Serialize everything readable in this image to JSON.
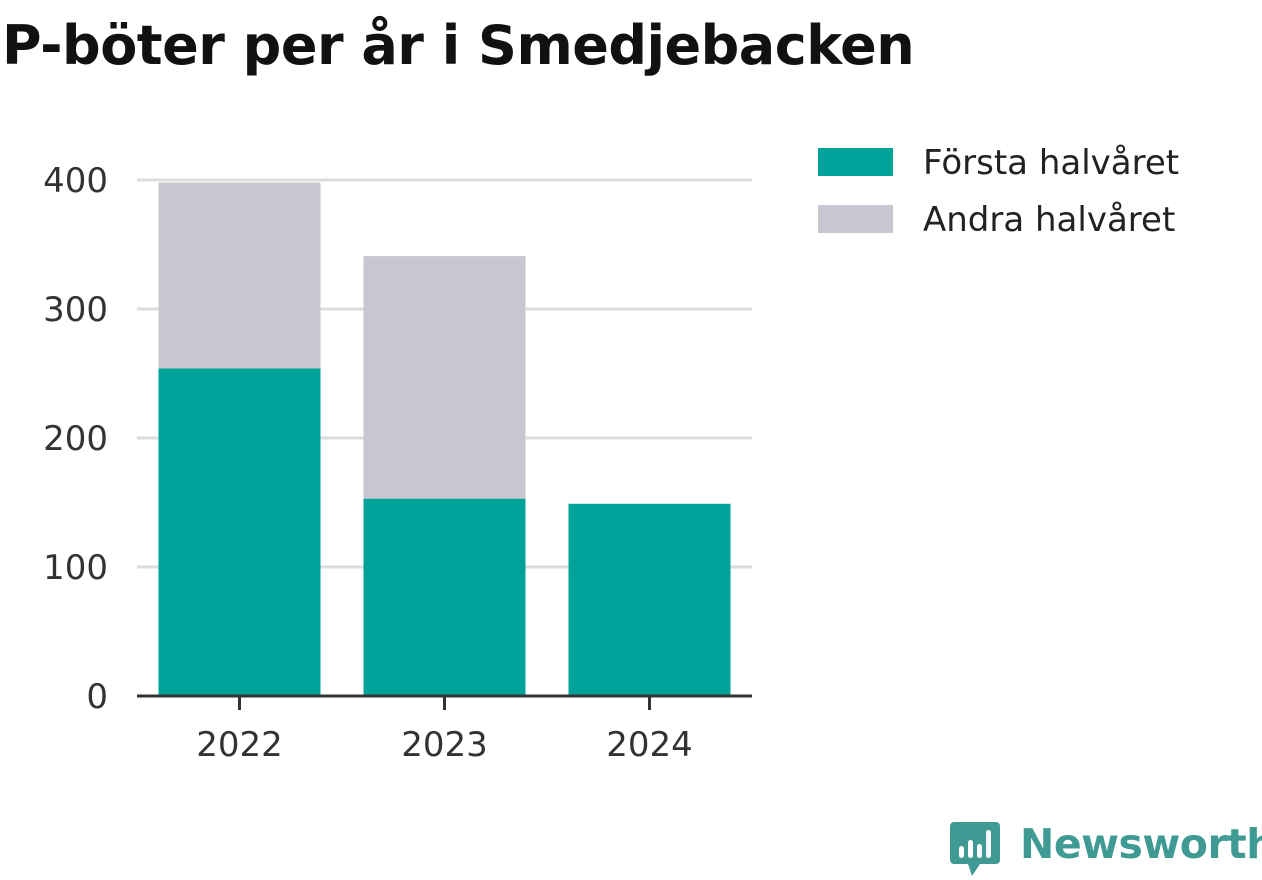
{
  "chart_data": {
    "type": "bar",
    "stacked": true,
    "title": "P-böter per år i Smedjebacken",
    "categories": [
      "2022",
      "2023",
      "2024"
    ],
    "series": [
      {
        "name": "Första halvåret",
        "values": [
          254,
          153,
          149
        ],
        "color": "#00a39a"
      },
      {
        "name": "Andra halvåret",
        "values": [
          144,
          188,
          0
        ],
        "color": "#c8c7d1"
      }
    ],
    "ylim": [
      0,
      400
    ],
    "yticks": [
      0,
      100,
      200,
      300,
      400
    ],
    "grid": true,
    "legend": "top-right",
    "xlabel": "",
    "ylabel": ""
  },
  "branding": {
    "name": "Newsworthy",
    "color": "#3e9a93",
    "icon": "newsworthy-logo-icon"
  }
}
